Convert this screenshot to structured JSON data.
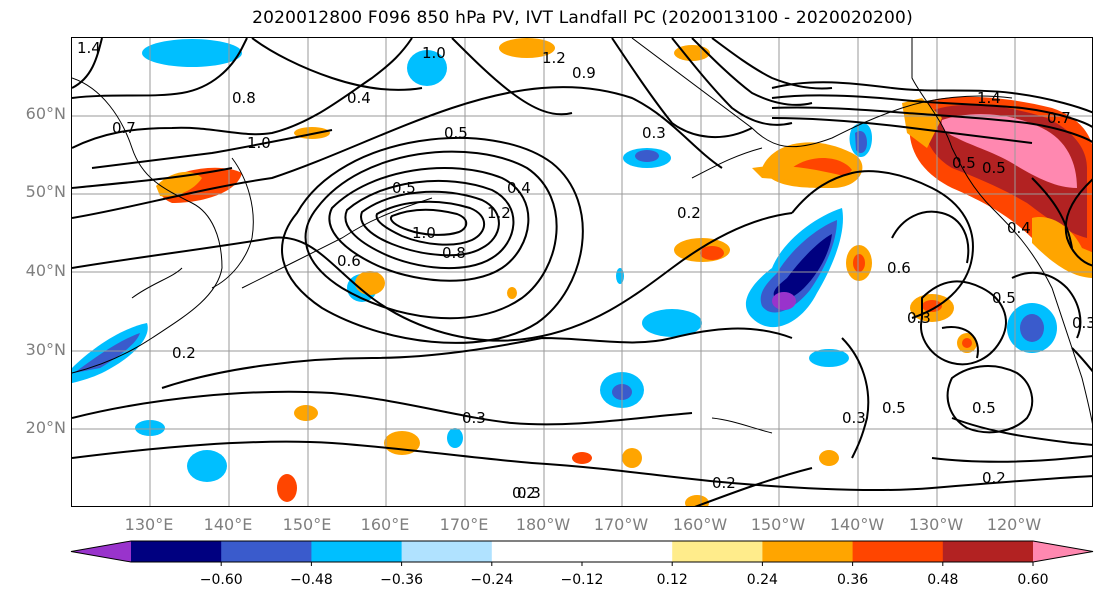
{
  "title": "2020012800 F096 850 hPa PV, IVT Landfall PC (2020013100 - 2020020200)",
  "lat_labels": [
    "60°N",
    "50°N",
    "40°N",
    "30°N",
    "20°N"
  ],
  "lon_labels": [
    "130°E",
    "140°E",
    "150°E",
    "160°E",
    "170°E",
    "180°W",
    "170°W",
    "160°W",
    "150°W",
    "140°W",
    "130°W",
    "120°W"
  ],
  "colorbar": {
    "colors": [
      "#9933cc",
      "#000080",
      "#3a5bcc",
      "#00bfff",
      "#b0e2ff",
      "#ffffff",
      "#ffffff",
      "#ffec8b",
      "#ffa500",
      "#ff4500",
      "#b22222",
      "#ff88b0"
    ],
    "ticks": [
      "−0.60",
      "−0.48",
      "−0.36",
      "−0.24",
      "−0.12",
      "0.12",
      "0.24",
      "0.36",
      "0.48",
      "0.60"
    ]
  },
  "contour_labels": [
    "1.0",
    "0.8",
    "1.2",
    "1.4",
    "0.4",
    "0.5",
    "0.3",
    "0.7",
    "0.9",
    "1.2",
    "1.0",
    "0.8",
    "0.6",
    "0.4",
    "0.5",
    "0.2",
    "0.2",
    "0.3",
    "0.3",
    "0.5",
    "0.5",
    "0.2",
    "0.2",
    "0.3",
    "0.6",
    "1.4",
    "0.7",
    "0.5",
    "0.4",
    "0.5",
    "0.3",
    "0.3",
    "1.0",
    "0.5",
    "0.2"
  ]
}
